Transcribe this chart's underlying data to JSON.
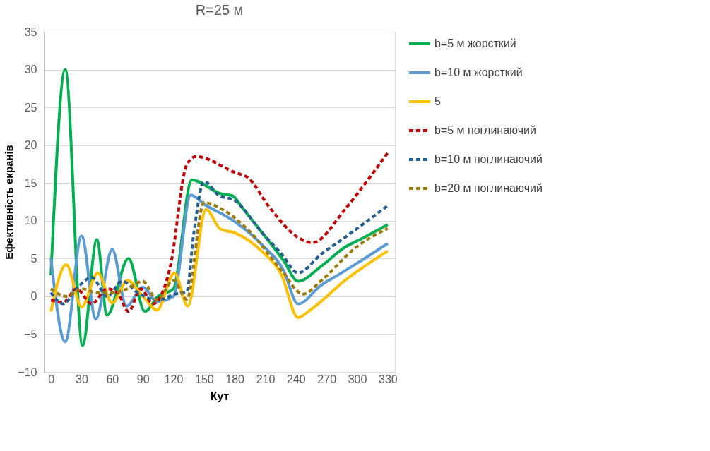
{
  "chart_data": {
    "type": "line",
    "title": "R=25 м",
    "xlabel": "Кут",
    "ylabel": "Ефективність екранів",
    "xlim": [
      -7,
      337
    ],
    "xticks": [
      0,
      30,
      60,
      90,
      120,
      150,
      180,
      210,
      240,
      270,
      300,
      330
    ],
    "ylim": [
      -10,
      35
    ],
    "yticks": [
      -10,
      -5,
      0,
      5,
      10,
      15,
      20,
      25,
      30,
      35
    ],
    "grid": "y",
    "legend": "right",
    "marker": "none",
    "series": [
      {
        "name": "b=5 м жорсткий",
        "color": "#00b050",
        "line_style": "solid",
        "x": [
          0,
          14,
          31,
          45,
          55,
          76,
          92,
          105,
          120,
          138,
          166,
          178,
          187,
          207,
          228,
          242,
          265,
          288,
          304,
          330
        ],
        "values": [
          2.8,
          30,
          -6.5,
          7.5,
          -2.5,
          5,
          -2,
          0,
          1,
          15.4,
          13.6,
          13.3,
          11.8,
          8.4,
          4.7,
          2,
          4,
          6.5,
          7.6,
          9.5
        ]
      },
      {
        "name": "b=10 м жорсткий",
        "color": "#5b9bd5",
        "line_style": "solid",
        "x": [
          0,
          14,
          30,
          44,
          60,
          74,
          90,
          104,
          120,
          137,
          150,
          180,
          207,
          228,
          242,
          265,
          281,
          299,
          330
        ],
        "values": [
          5,
          -6,
          8,
          -3,
          6.2,
          -1.3,
          1.2,
          -0.7,
          0,
          13.4,
          12.2,
          9.9,
          6.8,
          3.4,
          -1,
          1.5,
          2.8,
          4.3,
          7
        ]
      },
      {
        "name": "5",
        "color": "#ffc000",
        "line_style": "solid",
        "x": [
          0,
          15,
          30,
          46,
          60,
          75,
          90,
          104,
          121,
          134,
          152,
          166,
          180,
          207,
          226,
          242,
          256,
          288,
          330
        ],
        "values": [
          -2,
          4.2,
          -1.4,
          3.1,
          -0.9,
          2.1,
          0,
          -1.8,
          3.1,
          -1.3,
          11.5,
          8.9,
          8.4,
          5.9,
          2.8,
          -2.8,
          -1.6,
          2.1,
          6
        ]
      },
      {
        "name": "b=5 м поглинаючий",
        "color": "#c00000",
        "line_style": "dashed",
        "x": [
          0,
          12,
          25,
          40,
          55,
          65,
          76,
          88,
          100,
          117,
          133,
          142,
          180,
          193,
          214,
          242,
          256,
          288,
          306,
          330
        ],
        "values": [
          -0.5,
          -0.8,
          1,
          -1,
          1,
          0.5,
          -2,
          1,
          -1,
          4,
          17.4,
          18.5,
          16.4,
          15.7,
          11.8,
          7.8,
          7.1,
          11.5,
          14.6,
          19
        ]
      },
      {
        "name": "b=10 м поглинаючий",
        "color": "#255e91",
        "line_style": "dashed",
        "x": [
          0,
          12,
          25,
          40,
          55,
          70,
          85,
          104,
          122,
          133,
          140,
          150,
          164,
          180,
          207,
          226,
          242,
          265,
          288,
          330
        ],
        "values": [
          0.5,
          -1,
          1,
          2.5,
          0,
          2,
          0.5,
          -0.5,
          0.3,
          0.6,
          8.4,
          15.2,
          13.4,
          12.7,
          8.4,
          5.6,
          3.1,
          5.6,
          7.8,
          12
        ]
      },
      {
        "name": "b=20 м поглинаючий",
        "color": "#9e7c0b",
        "line_style": "dashed",
        "x": [
          0,
          15,
          30,
          45,
          60,
          75,
          90,
          104,
          120,
          133,
          150,
          168,
          196,
          226,
          247,
          265,
          299,
          330
        ],
        "values": [
          1,
          0,
          1,
          0.5,
          0.5,
          1,
          2,
          -0.5,
          2.1,
          -0.4,
          12.4,
          11.5,
          8.4,
          3.4,
          0.3,
          2.1,
          6.5,
          9
        ]
      }
    ]
  }
}
